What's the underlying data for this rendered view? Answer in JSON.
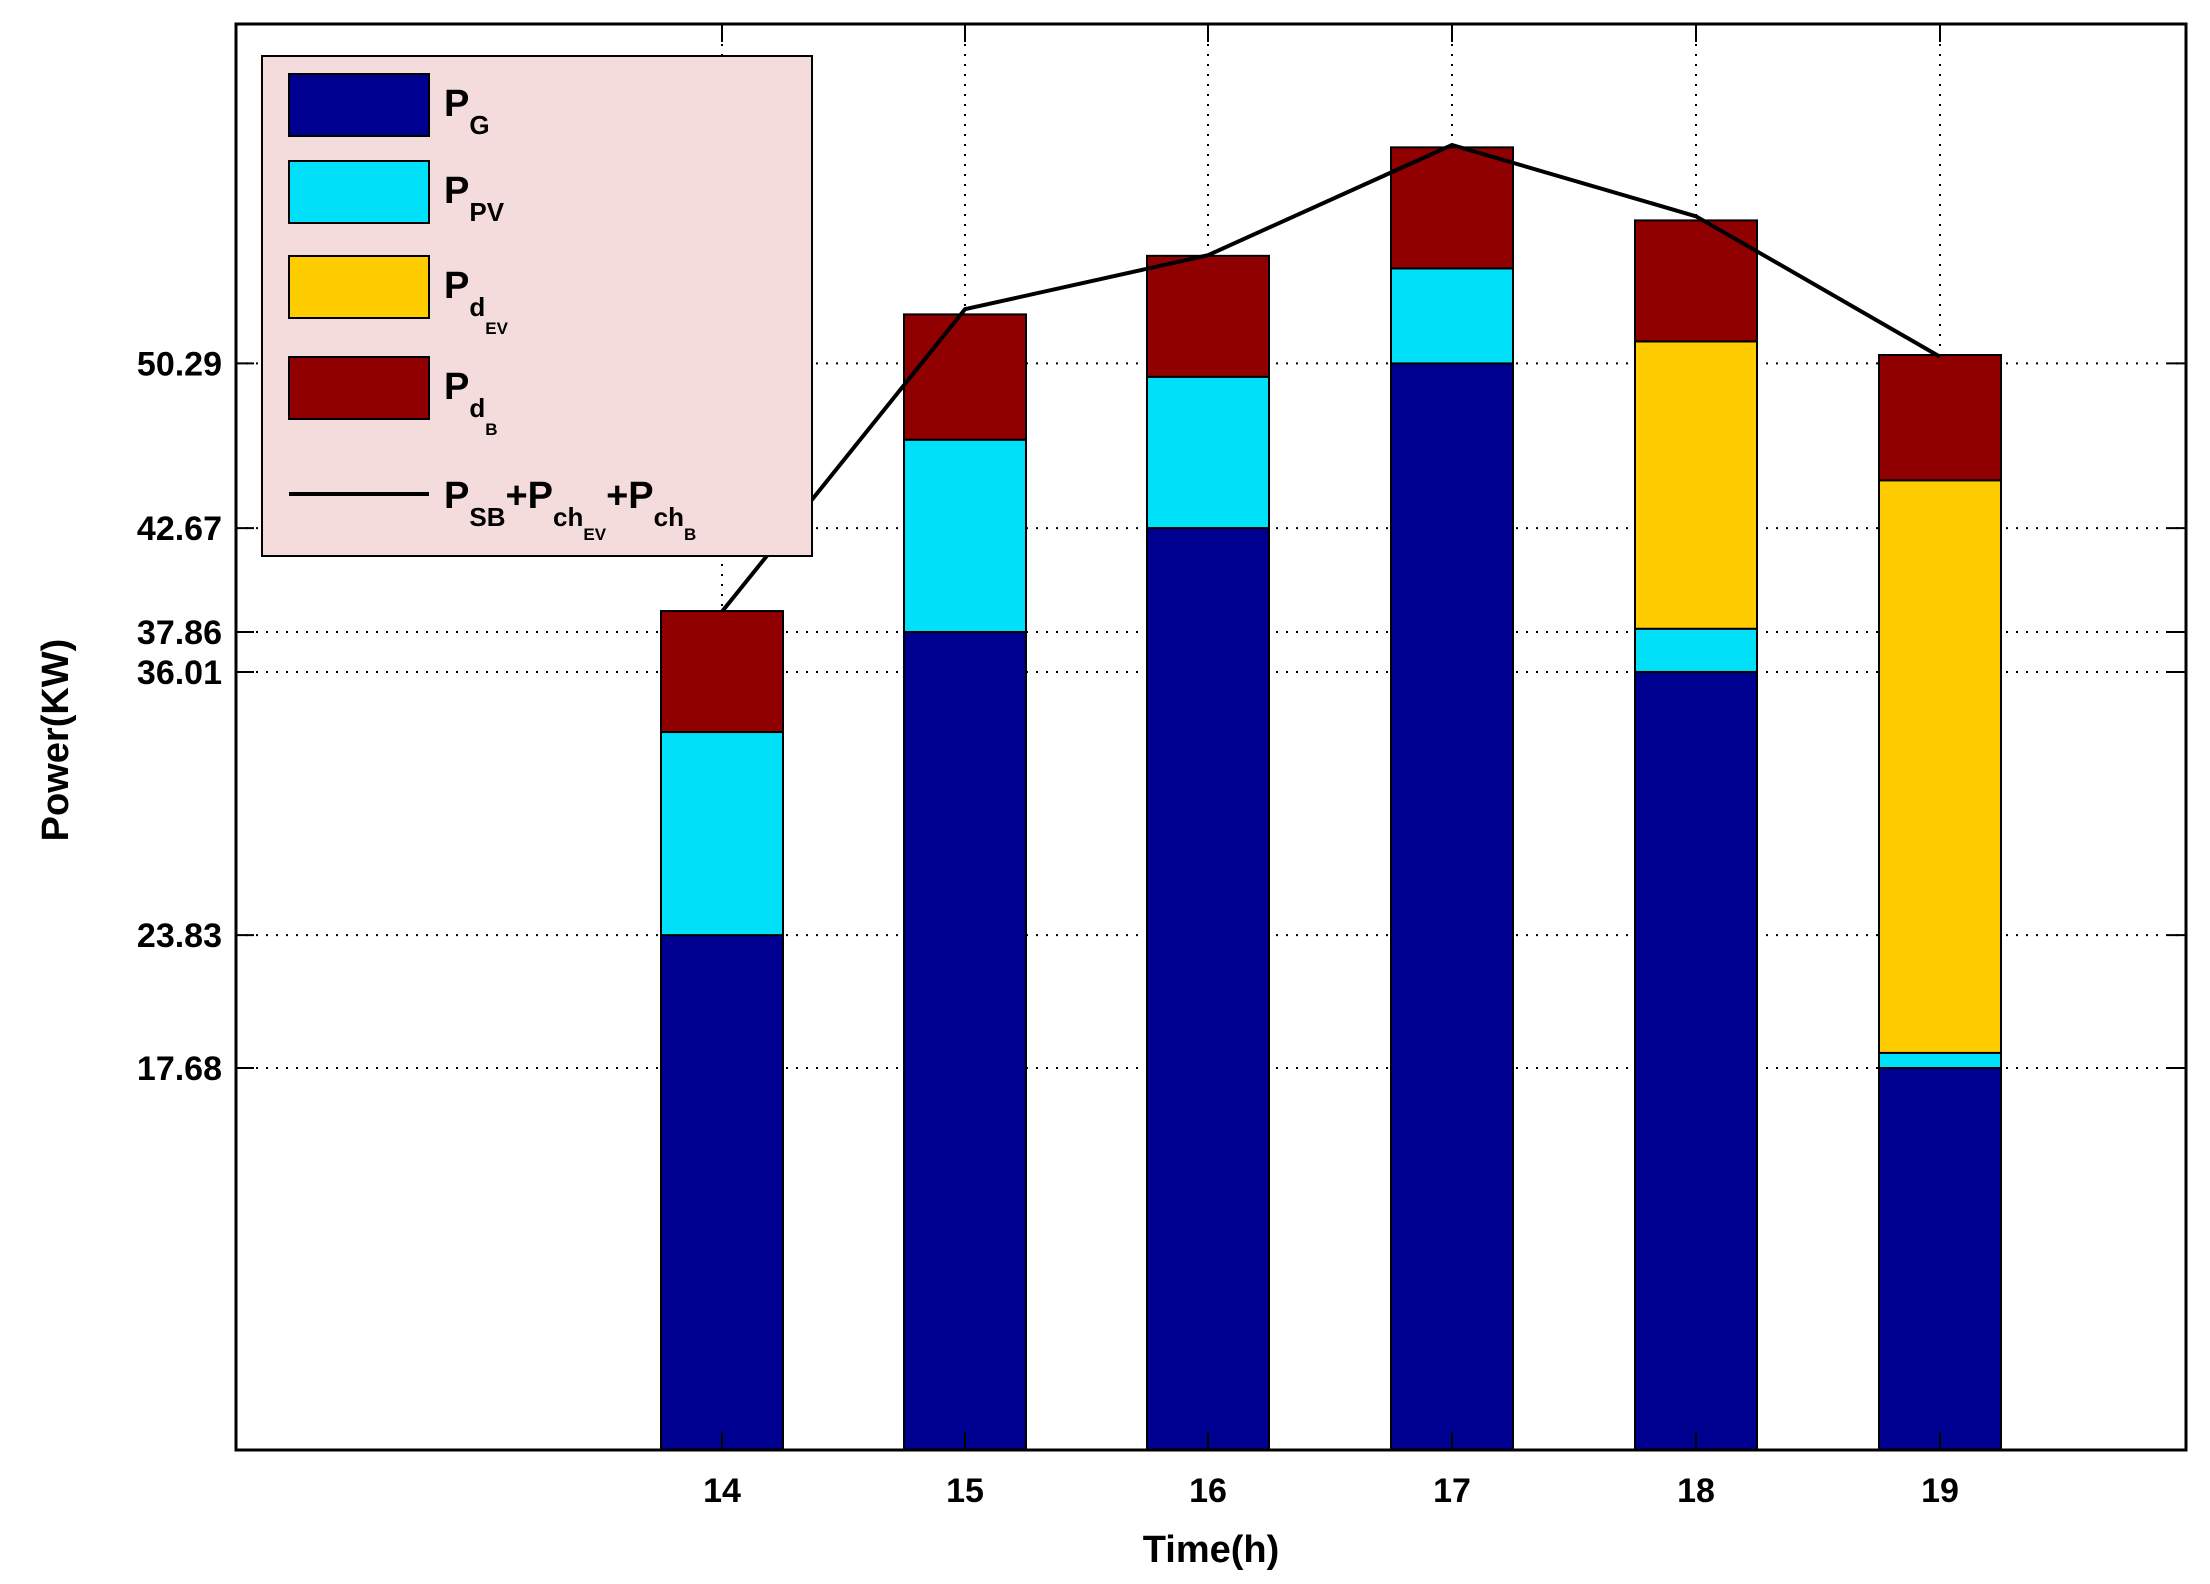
{
  "chart_data": {
    "type": "bar",
    "stacked": true,
    "xlabel": "Time(h)",
    "ylabel": "Power(KW)",
    "ylim": [
      0,
      66
    ],
    "categories": [
      "14",
      "15",
      "16",
      "17",
      "18",
      "19"
    ],
    "yticks": [
      17.68,
      23.83,
      36.01,
      37.86,
      42.67,
      50.29
    ],
    "ytick_labels": [
      "17.68",
      "23.83",
      "36.01",
      "37.86",
      "42.67",
      "50.29"
    ],
    "series": [
      {
        "name": "P_G",
        "color": "#000090",
        "values": [
          23.83,
          37.86,
          42.67,
          50.29,
          36.01,
          17.68
        ]
      },
      {
        "name": "P_PV",
        "color": "#00E0F8",
        "values": [
          9.4,
          8.9,
          7.0,
          4.4,
          2.0,
          0.7
        ]
      },
      {
        "name": "P_dEV",
        "color": "#FFCC00",
        "values": [
          0,
          0,
          0,
          0,
          13.3,
          26.5
        ]
      },
      {
        "name": "P_dB",
        "color": "#900000",
        "values": [
          5.6,
          5.8,
          5.6,
          5.6,
          5.6,
          5.8
        ]
      }
    ],
    "line": {
      "name": "P_SB+P_chEV+P_chB",
      "color": "#000000",
      "values": [
        38.8,
        52.8,
        55.3,
        60.4,
        57.1,
        50.6
      ]
    },
    "legend": {
      "location": "top-left",
      "background": "#F5DCDC",
      "entries": [
        {
          "main": "P",
          "sub": "G",
          "subsub": ""
        },
        {
          "main": "P",
          "sub": "PV",
          "subsub": ""
        },
        {
          "main": "P",
          "sub": "d",
          "subsub": "EV"
        },
        {
          "main": "P",
          "sub": "d",
          "subsub": "B"
        }
      ],
      "line_entry": [
        {
          "main": "P",
          "sub": "SB"
        },
        {
          "main": "+P",
          "sub": "ch",
          "subsub": "EV"
        },
        {
          "main": "+P",
          "sub": "ch",
          "subsub": "B"
        }
      ]
    },
    "grid": "dotted"
  }
}
